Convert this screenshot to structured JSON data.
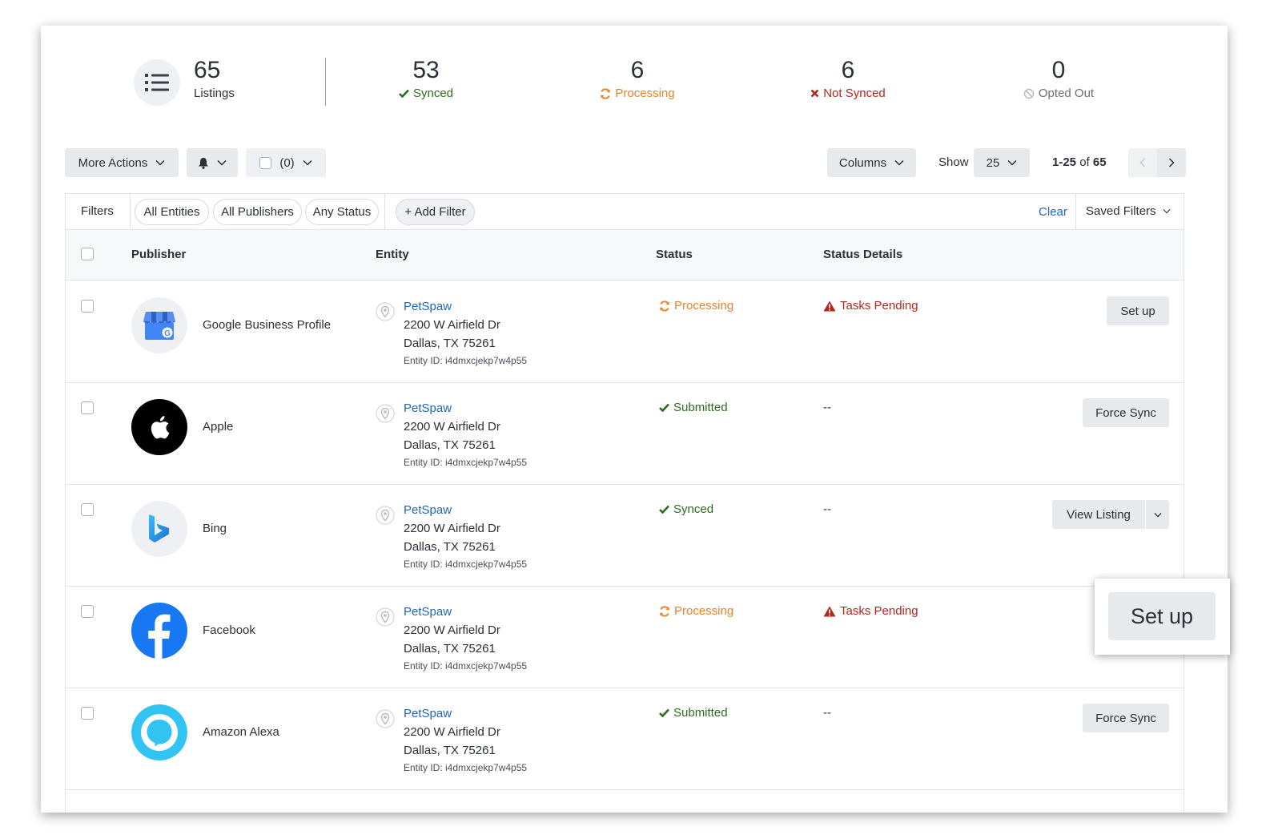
{
  "summary": {
    "listings": {
      "count": "65",
      "label": "Listings"
    },
    "synced": {
      "count": "53",
      "label": "Synced"
    },
    "processing": {
      "count": "6",
      "label": "Processing"
    },
    "not_synced": {
      "count": "6",
      "label": "Not Synced"
    },
    "opted_out": {
      "count": "0",
      "label": "Opted Out"
    }
  },
  "toolbar": {
    "more_actions": "More Actions",
    "selected_count": "(0)",
    "columns": "Columns",
    "show_label": "Show",
    "page_size": "25",
    "range": "1-25",
    "of_label": "of",
    "total": "65"
  },
  "filters": {
    "label": "Filters",
    "pills": [
      "All Entities",
      "All Publishers",
      "Any Status"
    ],
    "add_filter": "+ Add Filter",
    "clear": "Clear",
    "saved_filters": "Saved Filters"
  },
  "columns": {
    "publisher": "Publisher",
    "entity": "Entity",
    "status": "Status",
    "status_details": "Status Details"
  },
  "rows": [
    {
      "publisher": "Google Business Profile",
      "entity_name": "PetSpaw",
      "address1": "2200 W Airfield Dr",
      "address2": "Dallas, TX 75261",
      "entity_id": "Entity ID: i4dmxcjekp7w4p55",
      "status": "Processing",
      "details": "Tasks Pending",
      "action": "Set up"
    },
    {
      "publisher": "Apple",
      "entity_name": "PetSpaw",
      "address1": "2200 W Airfield Dr",
      "address2": "Dallas, TX 75261",
      "entity_id": "Entity ID: i4dmxcjekp7w4p55",
      "status": "Submitted",
      "details": "--",
      "action": "Force Sync"
    },
    {
      "publisher": "Bing",
      "entity_name": "PetSpaw",
      "address1": "2200 W Airfield Dr",
      "address2": "Dallas, TX 75261",
      "entity_id": "Entity ID: i4dmxcjekp7w4p55",
      "status": "Synced",
      "details": "--",
      "action": "View Listing"
    },
    {
      "publisher": "Facebook",
      "entity_name": "PetSpaw",
      "address1": "2200 W Airfield Dr",
      "address2": "Dallas, TX 75261",
      "entity_id": "Entity ID: i4dmxcjekp7w4p55",
      "status": "Processing",
      "details": "Tasks Pending",
      "action": ""
    },
    {
      "publisher": "Amazon Alexa",
      "entity_name": "PetSpaw",
      "address1": "2200 W Airfield Dr",
      "address2": "Dallas, TX 75261",
      "entity_id": "Entity ID: i4dmxcjekp7w4p55",
      "status": "Submitted",
      "details": "--",
      "action": "Force Sync"
    }
  ],
  "callout": {
    "label": "Set up"
  },
  "colors": {
    "link": "#1f66b8",
    "synced": "#2e6b1f",
    "processing": "#e8822b",
    "error": "#b3261e"
  }
}
